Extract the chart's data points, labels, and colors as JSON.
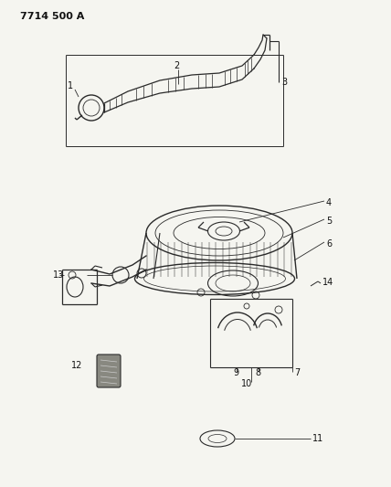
{
  "title": "7714 500 A",
  "bg_color": "#f5f5f0",
  "line_color": "#2a2a2a",
  "label_color": "#111111",
  "title_fontsize": 8,
  "label_fontsize": 7,
  "fig_w": 4.28,
  "fig_h": 5.33,
  "dpi": 100
}
